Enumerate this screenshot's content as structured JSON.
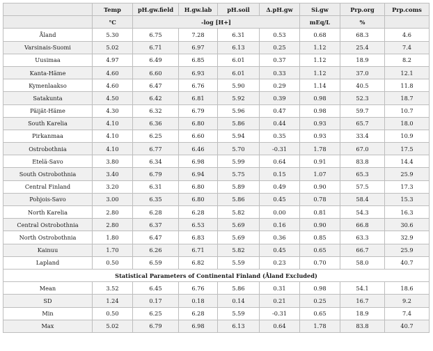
{
  "table": {
    "headers": [
      "",
      "Temp",
      "pH.gw.field",
      "H.gw.lab",
      "pH.soil",
      "Δ.pH.gw",
      "Si.gw",
      "Prp.org",
      "Prp.coms"
    ],
    "units": {
      "temp": "°C",
      "log_h": "-log [H+]",
      "si": "mEq/L",
      "prp": "%"
    },
    "rows": [
      [
        "Åland",
        "5.30",
        "6.75",
        "7.28",
        "6.31",
        "0.53",
        "0.68",
        "68.3",
        "4.6"
      ],
      [
        "Varsinais-Suomi",
        "5.02",
        "6.71",
        "6.97",
        "6.13",
        "0.25",
        "1.12",
        "25.4",
        "7.4"
      ],
      [
        "Uusimaa",
        "4.97",
        "6.49",
        "6.85",
        "6.01",
        "0.37",
        "1.12",
        "18.9",
        "8.2"
      ],
      [
        "Kanta-Häme",
        "4.60",
        "6.60",
        "6.93",
        "6.01",
        "0.33",
        "1.12",
        "37.0",
        "12.1"
      ],
      [
        "Kymenlaakso",
        "4.60",
        "6.47",
        "6.76",
        "5.90",
        "0.29",
        "1.14",
        "40.5",
        "11.8"
      ],
      [
        "Satakunta",
        "4.50",
        "6.42",
        "6.81",
        "5.92",
        "0.39",
        "0.98",
        "52.3",
        "18.7"
      ],
      [
        "Päijät-Häme",
        "4.30",
        "6.32",
        "6.79",
        "5.96",
        "0.47",
        "0.98",
        "59.7",
        "10.7"
      ],
      [
        "South Karelia",
        "4.10",
        "6.36",
        "6.80",
        "5.86",
        "0.44",
        "0.93",
        "65.7",
        "18.0"
      ],
      [
        "Pirkanmaa",
        "4.10",
        "6.25",
        "6.60",
        "5.94",
        "0.35",
        "0.93",
        "33.4",
        "10.9"
      ],
      [
        "Ostrobothnia",
        "4.10",
        "6.77",
        "6.46",
        "5.70",
        "-0.31",
        "1.78",
        "67.0",
        "17.5"
      ],
      [
        "Etelä-Savo",
        "3.80",
        "6.34",
        "6.98",
        "5.99",
        "0.64",
        "0.91",
        "83.8",
        "14.4"
      ],
      [
        "South Ostrobothnia",
        "3.40",
        "6.79",
        "6.94",
        "5.75",
        "0.15",
        "1.07",
        "65.3",
        "25.9"
      ],
      [
        "Central Finland",
        "3.20",
        "6.31",
        "6.80",
        "5.89",
        "0.49",
        "0.90",
        "57.5",
        "17.3"
      ],
      [
        "Pohjois-Savo",
        "3.00",
        "6.35",
        "6.80",
        "5.86",
        "0.45",
        "0.78",
        "58.4",
        "15.3"
      ],
      [
        "North Karelia",
        "2.80",
        "6.28",
        "6.28",
        "5.82",
        "0.00",
        "0.81",
        "54.3",
        "16.3"
      ],
      [
        "Central Ostrobothnia",
        "2.80",
        "6.37",
        "6.53",
        "5.69",
        "0.16",
        "0.90",
        "66.8",
        "30.6"
      ],
      [
        "North Ostrobothnia",
        "1.80",
        "6.47",
        "6.83",
        "5.69",
        "0.36",
        "0.85",
        "63.3",
        "32.9"
      ],
      [
        "Kainuu",
        "1.70",
        "6.26",
        "6.71",
        "5.82",
        "0.45",
        "0.65",
        "66.7",
        "25.9"
      ],
      [
        "Lapland",
        "0.50",
        "6.59",
        "6.82",
        "5.59",
        "0.23",
        "0.70",
        "58.0",
        "40.7"
      ]
    ],
    "section_title": "Statistical Parameters of Continental Finland (Åland Excluded)",
    "stats": [
      [
        "Mean",
        "3.52",
        "6.45",
        "6.76",
        "5.86",
        "0.31",
        "0.98",
        "54.1",
        "18.6"
      ],
      [
        "SD",
        "1.24",
        "0.17",
        "0.18",
        "0.14",
        "0.21",
        "0.25",
        "16.7",
        "9.2"
      ],
      [
        "Min",
        "0.50",
        "6.25",
        "6.28",
        "5.59",
        "-0.31",
        "0.65",
        "18.9",
        "7.4"
      ],
      [
        "Max",
        "5.02",
        "6.79",
        "6.98",
        "6.13",
        "0.64",
        "1.78",
        "83.8",
        "40.7"
      ]
    ]
  }
}
